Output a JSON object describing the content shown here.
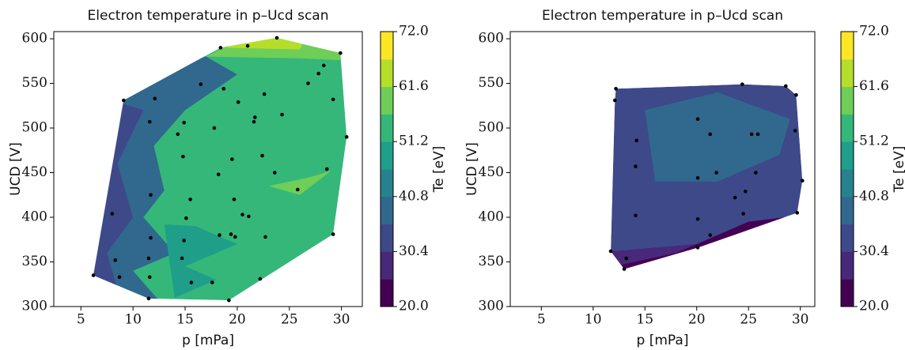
{
  "chart_data": [
    {
      "type": "contour-scatter",
      "title": "Electron temperature in p–Ucd scan",
      "x_label": "p [mPa]",
      "y_label": "UCD [V]",
      "xlim": [
        2.4,
        32
      ],
      "ylim": [
        300,
        608
      ],
      "xticks": [
        5,
        10,
        15,
        20,
        25,
        30
      ],
      "yticks": [
        300,
        350,
        400,
        450,
        500,
        550,
        600
      ],
      "point_color": "#000000",
      "x": [
        23.8,
        18.4,
        21.0,
        29.9,
        28.3,
        27.8,
        26.8,
        16.5,
        18.7,
        29.2,
        22.6,
        12.1,
        9.1,
        20.1,
        24.3,
        21.7,
        21.6,
        11.6,
        14.9,
        17.8,
        14.3,
        30.5,
        14.8,
        22.4,
        19.5,
        18.2,
        23.6,
        28.6,
        25.8,
        11.7,
        15.5,
        19.7,
        8.0,
        20.5,
        21.1,
        15.1,
        11.7,
        14.9,
        18.3,
        19.4,
        19.8,
        22.7,
        29.2,
        11.5,
        14.7,
        8.3,
        8.7,
        11.6,
        6.2,
        15.6,
        17.6,
        22.2,
        11.5,
        19.2
      ],
      "y": [
        601,
        590,
        592,
        584,
        570,
        561,
        550,
        549,
        544,
        532,
        538,
        533,
        531,
        529,
        515,
        512,
        507,
        507,
        506,
        500,
        493,
        490,
        468,
        469,
        465,
        448,
        450,
        454,
        431,
        425,
        420,
        420,
        404,
        403,
        401,
        399,
        377,
        374,
        380,
        381,
        378,
        378,
        381,
        354,
        354,
        352,
        333,
        333,
        335,
        327,
        327,
        331,
        309,
        307
      ],
      "colorbar": {
        "label": "Te [eV]",
        "ticks": [
          {
            "value": 20,
            "label": "20.0"
          },
          30.4,
          40.8,
          51.2,
          61.6,
          {
            "value": 72,
            "label": "72.0"
          }
        ],
        "lim": [
          20,
          72
        ],
        "colors": [
          "#440154",
          "#482878",
          "#3e4989",
          "#31688e",
          "#26828e",
          "#1f9e89",
          "#35b779",
          "#6ece58",
          "#b5de2b",
          "#fde725"
        ]
      }
    },
    {
      "type": "contour-scatter",
      "title": "Electron temperature in p–Ucd scan",
      "x_label": "p [mPa]",
      "y_label": "UCD [V]",
      "xlim": [
        2.0,
        31.4
      ],
      "ylim": [
        300,
        608
      ],
      "xticks": [
        5,
        10,
        15,
        20,
        25,
        30
      ],
      "yticks": [
        300,
        350,
        400,
        450,
        500,
        550,
        600
      ],
      "point_color": "#000000",
      "x": [
        12.2,
        12.1,
        24.4,
        28.6,
        29.6,
        20.1,
        14.2,
        21.3,
        25.3,
        25.9,
        29.5,
        14.1,
        21.9,
        25.7,
        20.1,
        30.2,
        24.7,
        23.7,
        14.1,
        20.1,
        24.5,
        29.7,
        21.3,
        20.1,
        11.7,
        13.2,
        13.0
      ],
      "y": [
        544,
        531,
        549,
        547,
        537,
        510,
        486,
        493,
        493,
        493,
        497,
        457,
        450,
        450,
        444,
        441,
        429,
        422,
        402,
        398,
        404,
        405,
        380,
        366,
        362,
        354,
        342
      ],
      "colorbar": {
        "label": "Te [eV]",
        "ticks": [
          {
            "value": 20,
            "label": "20.0"
          },
          30.4,
          40.8,
          51.2,
          61.6,
          {
            "value": 72,
            "label": "72.0"
          }
        ],
        "lim": [
          20,
          72
        ],
        "colors": [
          "#440154",
          "#482878",
          "#3e4989",
          "#31688e",
          "#26828e",
          "#1f9e89",
          "#35b779",
          "#6ece58",
          "#b5de2b",
          "#fde725"
        ]
      }
    }
  ]
}
